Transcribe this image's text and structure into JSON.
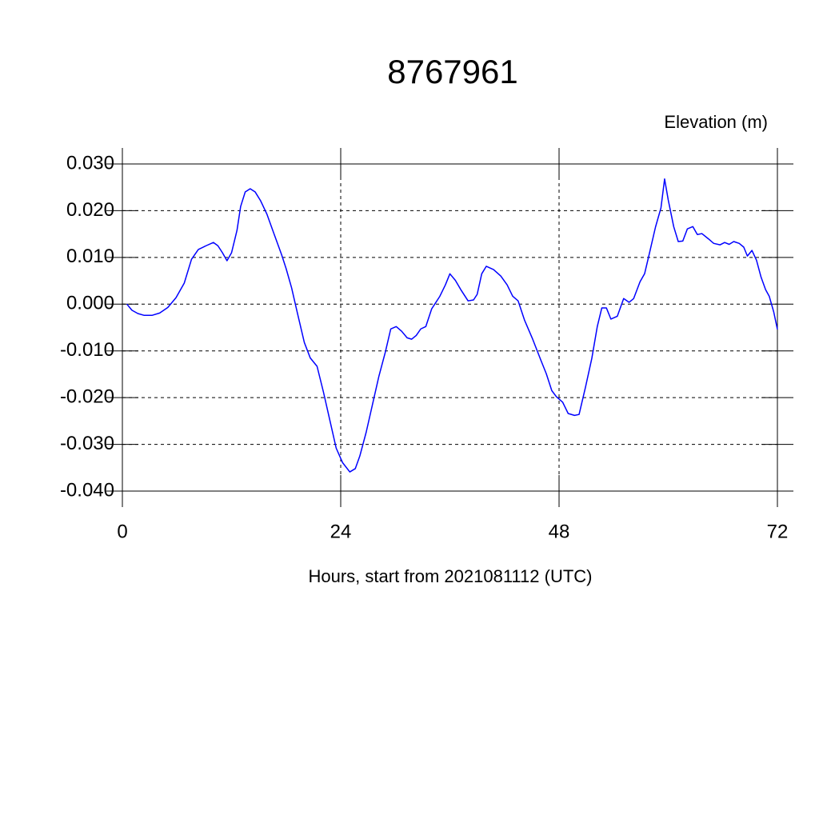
{
  "chart_data": {
    "type": "line",
    "title": "8767961",
    "ylabel": "Elevation (m)",
    "xlabel": "Hours, start from 2021081112 (UTC)",
    "xlim": [
      0,
      72
    ],
    "xticks": [
      0,
      24,
      48,
      72
    ],
    "ylim": [
      -0.04,
      0.03
    ],
    "yticks": [
      {
        "value": 0.03,
        "label": "0.030"
      },
      {
        "value": 0.02,
        "label": "0.020"
      },
      {
        "value": 0.01,
        "label": "0.010"
      },
      {
        "value": 0,
        "label": "0.000"
      },
      {
        "value": -0.01,
        "label": "-0.010"
      },
      {
        "value": -0.02,
        "label": "-0.020"
      },
      {
        "value": -0.03,
        "label": "-0.030"
      },
      {
        "value": -0.04,
        "label": "-0.040"
      }
    ],
    "grid": true,
    "series": [
      {
        "color": "#0000ff",
        "x": [
          0.5,
          1.05,
          1.7,
          2.4,
          3.25,
          4.1,
          5.0,
          5.9,
          6.8,
          7.6,
          8.35,
          9.2,
          10.0,
          10.5,
          11.0,
          11.5,
          12.0,
          12.6,
          13.0,
          13.5,
          14.05,
          14.6,
          15.2,
          15.9,
          16.6,
          17.5,
          18.0,
          18.6,
          19.25,
          20.0,
          20.65,
          21.4,
          22.1,
          22.8,
          23.5,
          24.2,
          25.0,
          25.6,
          26.1,
          26.8,
          27.5,
          28.2,
          28.9,
          29.5,
          30.1,
          30.7,
          31.3,
          31.8,
          32.3,
          32.8,
          33.35,
          34.0,
          34.9,
          35.5,
          36.0,
          36.6,
          37.2,
          38.0,
          38.6,
          39.0,
          39.5,
          40.0,
          40.8,
          41.6,
          42.3,
          42.9,
          43.5,
          44.2,
          45.1,
          46.0,
          46.6,
          47.2,
          47.7,
          48.4,
          49.0,
          49.7,
          50.2,
          50.9,
          51.6,
          52.2,
          52.7,
          53.2,
          53.7,
          54.4,
          55.1,
          55.7,
          56.2,
          56.9,
          57.4,
          57.9,
          58.6,
          59.2,
          59.6,
          60.0,
          60.6,
          61.1,
          61.6,
          62.1,
          62.7,
          63.2,
          63.7,
          64.4,
          65.0,
          65.7,
          66.2,
          66.7,
          67.2,
          67.8,
          68.3,
          68.7,
          69.2,
          69.7,
          70.2,
          70.7,
          71.1,
          71.6,
          72.0
        ],
        "values": [
          0.0,
          -0.0013,
          -0.002,
          -0.0024,
          -0.0024,
          -0.0019,
          -0.0007,
          0.0014,
          0.0045,
          0.0096,
          0.0117,
          0.0125,
          0.0132,
          0.0125,
          0.011,
          0.0093,
          0.011,
          0.0158,
          0.0209,
          0.024,
          0.0247,
          0.024,
          0.0221,
          0.0192,
          0.0154,
          0.0106,
          0.0076,
          0.0035,
          -0.002,
          -0.0082,
          -0.0115,
          -0.0133,
          -0.0188,
          -0.0248,
          -0.0308,
          -0.0339,
          -0.0359,
          -0.0352,
          -0.0325,
          -0.0274,
          -0.0214,
          -0.0154,
          -0.0103,
          -0.0053,
          -0.0048,
          -0.0058,
          -0.0072,
          -0.0075,
          -0.0067,
          -0.0053,
          -0.0048,
          -0.001,
          0.0017,
          0.0041,
          0.0065,
          0.0051,
          0.0031,
          0.0007,
          0.0009,
          0.0021,
          0.0065,
          0.0081,
          0.0074,
          0.006,
          0.0041,
          0.0017,
          0.0007,
          -0.0034,
          -0.0075,
          -0.012,
          -0.0149,
          -0.0185,
          -0.0198,
          -0.021,
          -0.0234,
          -0.0238,
          -0.0236,
          -0.0178,
          -0.0116,
          -0.0048,
          -0.0008,
          -0.0008,
          -0.0032,
          -0.0026,
          0.0012,
          0.0004,
          0.0012,
          0.0048,
          0.0065,
          0.0106,
          0.0165,
          0.0206,
          0.0268,
          0.0223,
          0.0166,
          0.0134,
          0.0135,
          0.0161,
          0.0166,
          0.0149,
          0.0151,
          0.014,
          0.013,
          0.0127,
          0.0132,
          0.0128,
          0.0134,
          0.013,
          0.0122,
          0.0103,
          0.0115,
          0.0094,
          0.0058,
          0.0031,
          0.0017,
          -0.0017,
          -0.0054
        ]
      }
    ]
  }
}
